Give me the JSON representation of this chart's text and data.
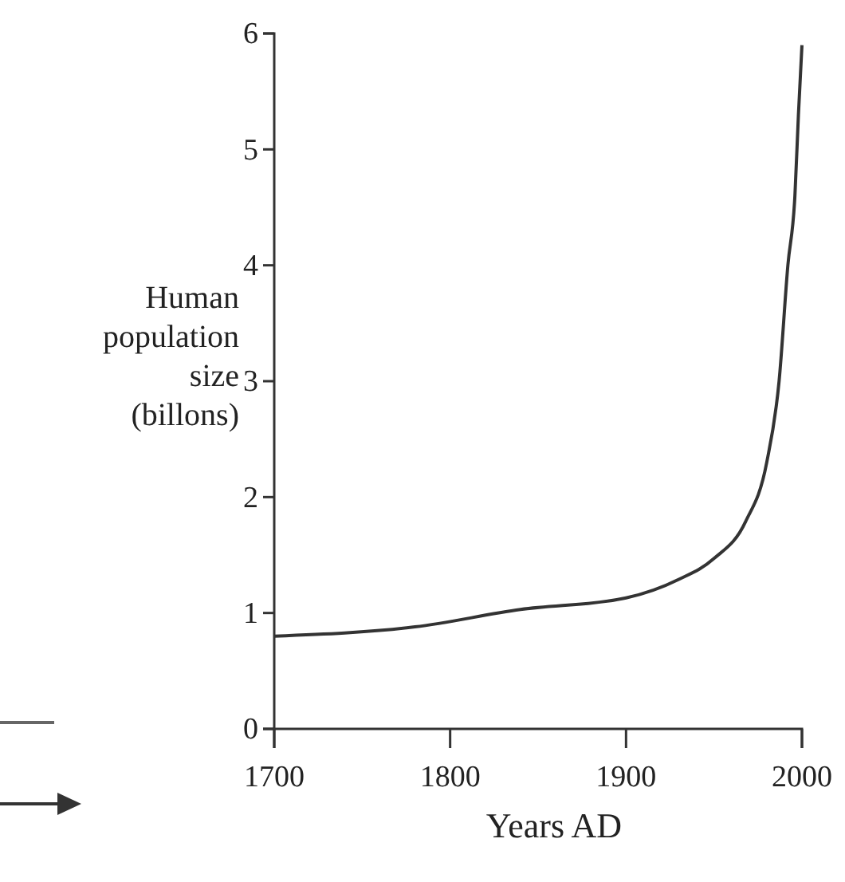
{
  "chart_data": {
    "type": "line",
    "xlabel": "Years AD",
    "ylabel": "Human population size (billons)",
    "x": [
      1700,
      1780,
      1840,
      1900,
      1930,
      1950,
      1968,
      1980,
      1987,
      1992,
      1996,
      1998,
      2000
    ],
    "series": [
      {
        "color": "#333333",
        "values": [
          0.8,
          0.88,
          1.03,
          1.13,
          1.29,
          1.47,
          1.79,
          2.3,
          3.0,
          4.0,
          4.6,
          5.3,
          5.9
        ]
      }
    ],
    "xlim": [
      1700,
      2000
    ],
    "xticks": [
      1700,
      1800,
      1900,
      2000
    ],
    "ylim": [
      0,
      6
    ],
    "yticks": [
      0,
      1,
      2,
      3,
      4,
      5,
      6
    ],
    "grid": false,
    "marker": "none",
    "line_style": "solid"
  }
}
